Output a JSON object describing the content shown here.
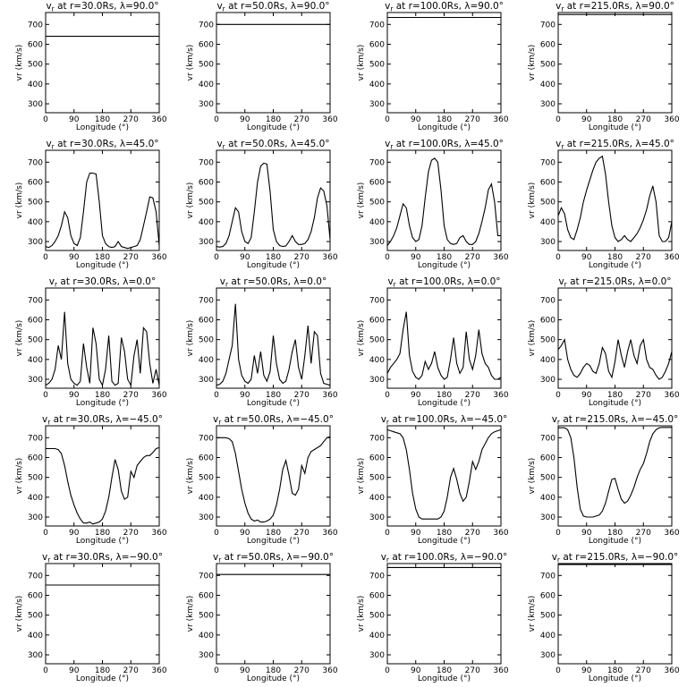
{
  "figure": {
    "x_ticks": [
      "0",
      "90",
      "180",
      "270",
      "360"
    ],
    "y_ticks": [
      "300",
      "400",
      "500",
      "600",
      "700"
    ]
  },
  "chart_data": [
    {
      "type": "line",
      "title": "vr at r=30.0Rs, λ=90.0°",
      "var": "v",
      "sub": "r",
      "rest": " at r=30.0Rs, λ=90.0°",
      "xlabel": "Longitude (°)",
      "ylabel": "vr (km/s)",
      "xlim": [
        0,
        360
      ],
      "ylim": [
        255,
        760
      ],
      "x": [
        0,
        360
      ],
      "y": [
        640,
        640
      ]
    },
    {
      "type": "line",
      "title": "vr at r=50.0Rs, λ=90.0°",
      "var": "v",
      "sub": "r",
      "rest": " at r=50.0Rs, λ=90.0°",
      "xlabel": "Longitude (°)",
      "ylabel": "vr (km/s)",
      "xlim": [
        0,
        360
      ],
      "ylim": [
        255,
        760
      ],
      "x": [
        0,
        360
      ],
      "y": [
        700,
        700
      ]
    },
    {
      "type": "line",
      "title": "vr at r=100.0Rs, λ=90.0°",
      "var": "v",
      "sub": "r",
      "rest": " at r=100.0Rs, λ=90.0°",
      "xlabel": "Longitude (°)",
      "ylabel": "vr (km/s)",
      "xlim": [
        0,
        360
      ],
      "ylim": [
        255,
        760
      ],
      "x": [
        0,
        360
      ],
      "y": [
        735,
        735
      ]
    },
    {
      "type": "line",
      "title": "vr at r=215.0Rs, λ=90.0°",
      "var": "v",
      "sub": "r",
      "rest": " at r=215.0Rs, λ=90.0°",
      "xlabel": "Longitude (°)",
      "ylabel": "vr (km/s)",
      "xlim": [
        0,
        360
      ],
      "ylim": [
        255,
        760
      ],
      "x": [
        0,
        360
      ],
      "y": [
        750,
        750
      ]
    },
    {
      "type": "line",
      "title": "vr at r=30.0Rs, λ=45.0°",
      "var": "v",
      "sub": "r",
      "rest": " at r=30.0Rs, λ=45.0°",
      "xlabel": "Longitude (°)",
      "ylabel": "vr (km/s)",
      "xlim": [
        0,
        360
      ],
      "ylim": [
        255,
        760
      ],
      "x": [
        0,
        10,
        20,
        30,
        40,
        50,
        60,
        70,
        80,
        90,
        100,
        110,
        120,
        130,
        140,
        150,
        160,
        170,
        180,
        190,
        200,
        210,
        220,
        230,
        240,
        250,
        260,
        270,
        280,
        290,
        300,
        310,
        320,
        330,
        340,
        350,
        360
      ],
      "y": [
        275,
        270,
        280,
        300,
        330,
        380,
        450,
        420,
        330,
        290,
        280,
        320,
        450,
        600,
        645,
        645,
        640,
        500,
        330,
        290,
        275,
        270,
        275,
        300,
        275,
        270,
        265,
        270,
        275,
        280,
        310,
        380,
        450,
        525,
        520,
        450,
        280
      ]
    },
    {
      "type": "line",
      "title": "vr at r=50.0Rs, λ=45.0°",
      "var": "v",
      "sub": "r",
      "rest": " at r=50.0Rs, λ=45.0°",
      "xlabel": "Longitude (°)",
      "ylabel": "vr (km/s)",
      "xlim": [
        0,
        360
      ],
      "ylim": [
        255,
        760
      ],
      "x": [
        0,
        10,
        20,
        30,
        40,
        50,
        60,
        70,
        80,
        90,
        100,
        110,
        120,
        130,
        140,
        150,
        160,
        170,
        180,
        190,
        200,
        210,
        220,
        230,
        240,
        250,
        260,
        270,
        280,
        290,
        300,
        310,
        320,
        330,
        340,
        350,
        360
      ],
      "y": [
        275,
        272,
        275,
        290,
        330,
        400,
        470,
        450,
        350,
        300,
        290,
        320,
        450,
        600,
        680,
        695,
        690,
        550,
        360,
        300,
        280,
        275,
        278,
        300,
        330,
        300,
        285,
        285,
        290,
        310,
        350,
        420,
        520,
        570,
        555,
        480,
        310
      ]
    },
    {
      "type": "line",
      "title": "vr at r=100.0Rs, λ=45.0°",
      "var": "v",
      "sub": "r",
      "rest": " at r=100.0Rs, λ=45.0°",
      "xlabel": "Longitude (°)",
      "ylabel": "vr (km/s)",
      "xlim": [
        0,
        360
      ],
      "ylim": [
        255,
        760
      ],
      "x": [
        0,
        10,
        20,
        30,
        40,
        50,
        60,
        70,
        80,
        90,
        100,
        110,
        120,
        130,
        140,
        150,
        160,
        170,
        180,
        190,
        200,
        210,
        220,
        230,
        240,
        250,
        260,
        270,
        280,
        290,
        300,
        310,
        320,
        330,
        340,
        350,
        360
      ],
      "y": [
        280,
        300,
        330,
        370,
        430,
        490,
        470,
        380,
        320,
        300,
        310,
        380,
        520,
        650,
        710,
        720,
        700,
        560,
        380,
        310,
        290,
        285,
        290,
        320,
        330,
        300,
        285,
        285,
        300,
        340,
        400,
        470,
        560,
        590,
        500,
        330,
        330
      ]
    },
    {
      "type": "line",
      "title": "vr at r=215.0Rs, λ=45.0°",
      "var": "v",
      "sub": "r",
      "rest": " at r=215.0Rs, λ=45.0°",
      "xlabel": "Longitude (°)",
      "ylabel": "vr (km/s)",
      "xlim": [
        0,
        360
      ],
      "ylim": [
        255,
        760
      ],
      "x": [
        0,
        10,
        20,
        30,
        40,
        50,
        60,
        70,
        80,
        90,
        100,
        110,
        120,
        130,
        140,
        150,
        160,
        170,
        180,
        190,
        200,
        210,
        220,
        230,
        240,
        250,
        260,
        270,
        280,
        290,
        300,
        310,
        320,
        330,
        340,
        350,
        360
      ],
      "y": [
        430,
        470,
        440,
        360,
        320,
        310,
        360,
        420,
        500,
        560,
        610,
        660,
        700,
        720,
        730,
        640,
        500,
        380,
        320,
        300,
        310,
        330,
        310,
        300,
        320,
        340,
        370,
        410,
        460,
        530,
        580,
        500,
        330,
        300,
        300,
        320,
        400
      ]
    },
    {
      "type": "line",
      "title": "vr at r=30.0Rs, λ=0.0°",
      "var": "v",
      "sub": "r",
      "rest": " at r=30.0Rs, λ=0.0°",
      "xlabel": "Longitude (°)",
      "ylabel": "vr (km/s)",
      "xlim": [
        0,
        360
      ],
      "ylim": [
        255,
        760
      ],
      "x": [
        0,
        10,
        20,
        30,
        40,
        50,
        60,
        70,
        80,
        90,
        100,
        110,
        120,
        130,
        140,
        150,
        160,
        170,
        180,
        190,
        200,
        210,
        220,
        230,
        240,
        250,
        260,
        270,
        280,
        290,
        300,
        310,
        320,
        330,
        340,
        350,
        360
      ],
      "y": [
        270,
        280,
        300,
        350,
        470,
        400,
        640,
        380,
        300,
        280,
        270,
        290,
        480,
        360,
        280,
        560,
        480,
        300,
        270,
        350,
        520,
        290,
        270,
        280,
        510,
        440,
        300,
        270,
        420,
        500,
        330,
        560,
        540,
        380,
        280,
        350,
        270
      ]
    },
    {
      "type": "line",
      "title": "vr at r=50.0Rs, λ=0.0°",
      "var": "v",
      "sub": "r",
      "rest": " at r=50.0Rs, λ=0.0°",
      "xlabel": "Longitude (°)",
      "ylabel": "vr (km/s)",
      "xlim": [
        0,
        360
      ],
      "ylim": [
        255,
        760
      ],
      "x": [
        0,
        10,
        20,
        30,
        40,
        50,
        60,
        70,
        80,
        90,
        100,
        110,
        120,
        130,
        140,
        150,
        160,
        170,
        180,
        190,
        200,
        210,
        220,
        230,
        240,
        250,
        260,
        270,
        280,
        290,
        300,
        310,
        320,
        330,
        340,
        350,
        360
      ],
      "y": [
        270,
        275,
        290,
        330,
        400,
        470,
        680,
        400,
        320,
        290,
        280,
        300,
        420,
        330,
        440,
        320,
        290,
        340,
        520,
        380,
        300,
        280,
        290,
        350,
        440,
        500,
        360,
        300,
        420,
        570,
        380,
        540,
        520,
        330,
        280,
        275,
        270
      ]
    },
    {
      "type": "line",
      "title": "vr at r=100.0Rs, λ=0.0°",
      "var": "v",
      "sub": "r",
      "rest": " at r=100.0Rs, λ=0.0°",
      "xlabel": "Longitude (°)",
      "ylabel": "vr (km/s)",
      "xlim": [
        0,
        360
      ],
      "ylim": [
        255,
        760
      ],
      "x": [
        0,
        10,
        20,
        30,
        40,
        50,
        60,
        70,
        80,
        90,
        100,
        110,
        120,
        130,
        140,
        150,
        160,
        170,
        180,
        190,
        200,
        210,
        220,
        230,
        240,
        250,
        260,
        270,
        280,
        290,
        300,
        310,
        320,
        330,
        340,
        350,
        360
      ],
      "y": [
        330,
        360,
        380,
        400,
        430,
        550,
        640,
        420,
        340,
        310,
        300,
        320,
        390,
        350,
        380,
        440,
        360,
        320,
        300,
        310,
        400,
        510,
        380,
        330,
        360,
        540,
        400,
        350,
        420,
        550,
        430,
        380,
        360,
        320,
        300,
        300,
        310
      ]
    },
    {
      "type": "line",
      "title": "vr at r=215.0Rs, λ=0.0°",
      "var": "v",
      "sub": "r",
      "rest": " at r=215.0Rs, λ=0.0°",
      "xlabel": "Longitude (°)",
      "ylabel": "vr (km/s)",
      "xlim": [
        0,
        360
      ],
      "ylim": [
        255,
        760
      ],
      "x": [
        0,
        10,
        20,
        30,
        40,
        50,
        60,
        70,
        80,
        90,
        100,
        110,
        120,
        130,
        140,
        150,
        160,
        170,
        180,
        190,
        200,
        210,
        220,
        230,
        240,
        250,
        260,
        270,
        280,
        290,
        300,
        310,
        320,
        330,
        340,
        350,
        360
      ],
      "y": [
        450,
        470,
        500,
        400,
        350,
        320,
        310,
        330,
        360,
        380,
        370,
        340,
        330,
        380,
        460,
        430,
        340,
        310,
        390,
        500,
        420,
        360,
        440,
        500,
        420,
        380,
        470,
        500,
        400,
        360,
        350,
        320,
        300,
        310,
        340,
        380,
        440
      ]
    },
    {
      "type": "line",
      "title": "vr at r=30.0Rs, λ=−45.0°",
      "var": "v",
      "sub": "r",
      "rest": " at r=30.0Rs, λ=−45.0°",
      "xlabel": "Longitude (°)",
      "ylabel": "vr (km/s)",
      "xlim": [
        0,
        360
      ],
      "ylim": [
        255,
        760
      ],
      "x": [
        0,
        10,
        20,
        30,
        40,
        50,
        60,
        70,
        80,
        90,
        100,
        110,
        120,
        130,
        140,
        150,
        160,
        170,
        180,
        190,
        200,
        210,
        220,
        230,
        240,
        250,
        260,
        270,
        280,
        290,
        300,
        310,
        320,
        330,
        340,
        350,
        360
      ],
      "y": [
        645,
        645,
        645,
        645,
        640,
        620,
        560,
        480,
        410,
        360,
        320,
        290,
        270,
        270,
        275,
        265,
        270,
        275,
        290,
        330,
        400,
        500,
        590,
        540,
        430,
        390,
        400,
        530,
        500,
        560,
        580,
        600,
        610,
        610,
        625,
        645,
        650
      ]
    },
    {
      "type": "line",
      "title": "vr at r=50.0Rs, λ=−45.0°",
      "var": "v",
      "sub": "r",
      "rest": " at r=50.0Rs, λ=−45.0°",
      "xlabel": "Longitude (°)",
      "ylabel": "vr (km/s)",
      "xlim": [
        0,
        360
      ],
      "ylim": [
        255,
        760
      ],
      "x": [
        0,
        10,
        20,
        30,
        40,
        50,
        60,
        70,
        80,
        90,
        100,
        110,
        120,
        130,
        140,
        150,
        160,
        170,
        180,
        190,
        200,
        210,
        220,
        230,
        240,
        250,
        260,
        270,
        280,
        290,
        300,
        310,
        320,
        330,
        340,
        350,
        360
      ],
      "y": [
        700,
        700,
        700,
        700,
        695,
        680,
        620,
        530,
        440,
        370,
        320,
        290,
        280,
        285,
        275,
        275,
        280,
        290,
        310,
        360,
        440,
        540,
        585,
        510,
        420,
        410,
        440,
        560,
        520,
        600,
        630,
        640,
        650,
        660,
        680,
        700,
        705
      ]
    },
    {
      "type": "line",
      "title": "vr at r=100.0Rs, λ=−45.0°",
      "var": "v",
      "sub": "r",
      "rest": " at r=100.0Rs, λ=−45.0°",
      "xlabel": "Longitude (°)",
      "ylabel": "vr (km/s)",
      "xlim": [
        0,
        360
      ],
      "ylim": [
        255,
        760
      ],
      "x": [
        0,
        10,
        20,
        30,
        40,
        50,
        60,
        70,
        80,
        90,
        100,
        110,
        120,
        130,
        140,
        150,
        160,
        170,
        180,
        190,
        200,
        210,
        220,
        230,
        240,
        250,
        260,
        270,
        280,
        290,
        300,
        310,
        320,
        330,
        340,
        350,
        360
      ],
      "y": [
        740,
        735,
        730,
        725,
        720,
        700,
        640,
        540,
        420,
        340,
        300,
        290,
        290,
        290,
        290,
        290,
        290,
        300,
        330,
        400,
        500,
        545,
        490,
        420,
        380,
        400,
        480,
        580,
        540,
        580,
        640,
        670,
        700,
        720,
        730,
        735,
        740
      ]
    },
    {
      "type": "line",
      "title": "vr at r=215.0Rs, λ=−45.0°",
      "var": "v",
      "sub": "r",
      "rest": " at r=215.0Rs, λ=−45.0°",
      "xlabel": "Longitude (°)",
      "ylabel": "vr (km/s)",
      "xlim": [
        0,
        360
      ],
      "ylim": [
        255,
        760
      ],
      "x": [
        0,
        10,
        20,
        30,
        40,
        50,
        60,
        70,
        80,
        90,
        100,
        110,
        120,
        130,
        140,
        150,
        160,
        170,
        180,
        190,
        200,
        210,
        220,
        230,
        240,
        250,
        260,
        270,
        280,
        290,
        300,
        310,
        320,
        330,
        340,
        350,
        360
      ],
      "y": [
        750,
        750,
        750,
        740,
        700,
        600,
        450,
        340,
        305,
        300,
        300,
        300,
        305,
        310,
        330,
        370,
        430,
        490,
        495,
        440,
        390,
        370,
        380,
        410,
        450,
        500,
        540,
        570,
        620,
        680,
        720,
        740,
        750,
        752,
        752,
        752,
        752
      ]
    },
    {
      "type": "line",
      "title": "vr at r=30.0Rs, λ=−90.0°",
      "var": "v",
      "sub": "r",
      "rest": " at r=30.0Rs, λ=−90.0°",
      "xlabel": "Longitude (°)",
      "ylabel": "vr (km/s)",
      "xlim": [
        0,
        360
      ],
      "ylim": [
        255,
        760
      ],
      "x": [
        0,
        360
      ],
      "y": [
        652,
        652
      ]
    },
    {
      "type": "line",
      "title": "vr at r=50.0Rs, λ=−90.0°",
      "var": "v",
      "sub": "r",
      "rest": " at r=50.0Rs, λ=−90.0°",
      "xlabel": "Longitude (°)",
      "ylabel": "vr (km/s)",
      "xlim": [
        0,
        360
      ],
      "ylim": [
        255,
        760
      ],
      "x": [
        0,
        360
      ],
      "y": [
        705,
        705
      ]
    },
    {
      "type": "line",
      "title": "vr at r=100.0Rs, λ=−90.0°",
      "var": "v",
      "sub": "r",
      "rest": " at r=100.0Rs, λ=−90.0°",
      "xlabel": "Longitude (°)",
      "ylabel": "vr (km/s)",
      "xlim": [
        0,
        360
      ],
      "ylim": [
        255,
        760
      ],
      "x": [
        0,
        360
      ],
      "y": [
        740,
        740
      ]
    },
    {
      "type": "line",
      "title": "vr at r=215.0Rs, λ=−90.0°",
      "var": "v",
      "sub": "r",
      "rest": " at r=215.0Rs, λ=−90.0°",
      "xlabel": "Longitude (°)",
      "ylabel": "vr (km/s)",
      "xlim": [
        0,
        360
      ],
      "ylim": [
        255,
        760
      ],
      "x": [
        0,
        360
      ],
      "y": [
        755,
        755
      ]
    }
  ]
}
